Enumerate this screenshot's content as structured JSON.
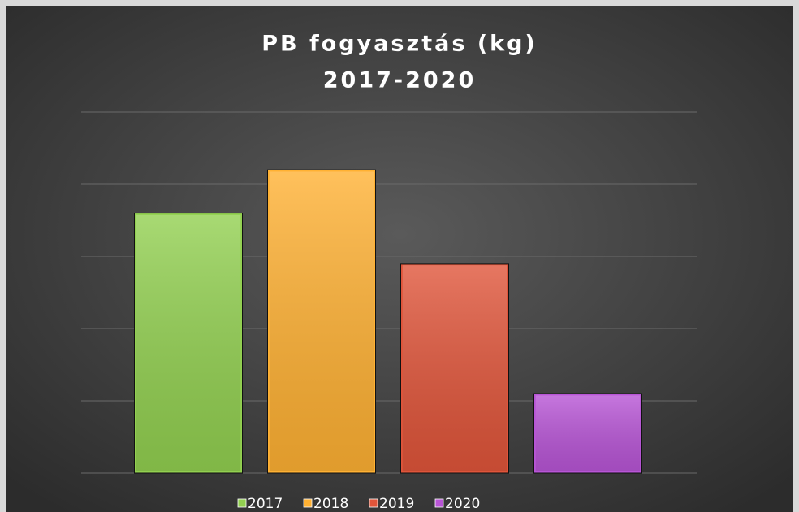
{
  "chart_data": {
    "type": "bar",
    "title": "PB fogyasztás (kg)",
    "subtitle": "2017-2020",
    "categories": [
      "2017",
      "2018",
      "2019",
      "2020"
    ],
    "values": [
      3.6,
      4.2,
      2.9,
      1.1
    ],
    "colors": [
      "#92d050",
      "#ffb133",
      "#e0553a",
      "#b855d6"
    ],
    "ylim": [
      0,
      5
    ],
    "yticks": [
      0,
      1,
      2,
      3,
      4,
      5
    ],
    "grid": true,
    "legend": "bottom"
  }
}
